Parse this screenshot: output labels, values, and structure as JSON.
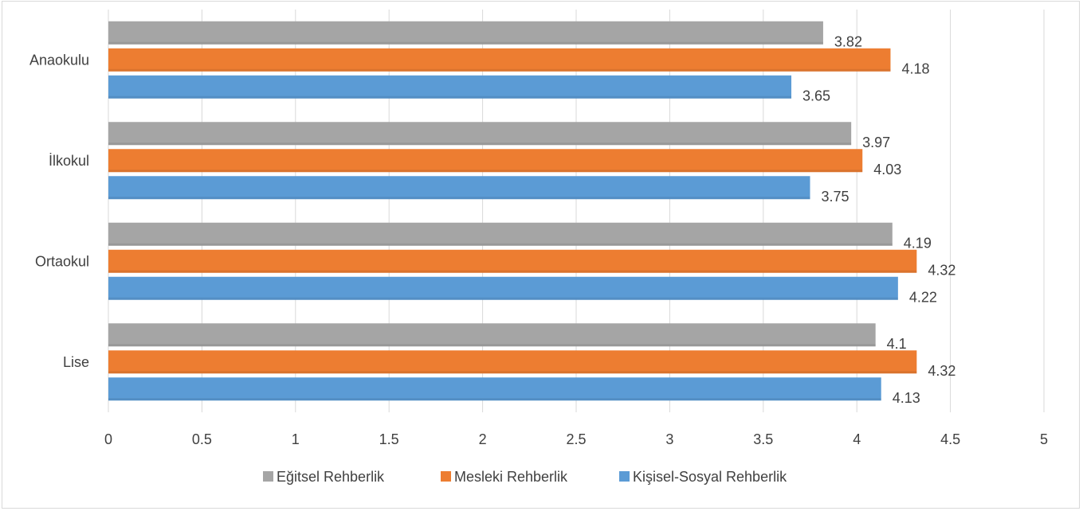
{
  "chart_data": {
    "type": "bar",
    "orientation": "horizontal",
    "categories": [
      "Anaokulu",
      "İlkokul",
      "Ortaokul",
      "Lise"
    ],
    "series": [
      {
        "name": "Eğitsel Rehberlik",
        "color": "#a5a5a5",
        "values": [
          3.82,
          3.97,
          4.19,
          4.1
        ]
      },
      {
        "name": "Mesleki Rehberlik",
        "color": "#ed7d31",
        "values": [
          4.18,
          4.03,
          4.32,
          4.32
        ]
      },
      {
        "name": "Kişisel-Sosyal Rehberlik",
        "color": "#5b9bd5",
        "values": [
          3.65,
          3.75,
          4.22,
          4.13
        ]
      }
    ],
    "xlim": [
      0,
      5
    ],
    "x_ticks": [
      "0",
      "0.5",
      "1",
      "1.5",
      "2",
      "2.5",
      "3",
      "3.5",
      "4",
      "4.5",
      "5"
    ],
    "data_labels": [
      [
        "3.82",
        "4.18",
        "3.65"
      ],
      [
        "3.97",
        "4.03",
        "3.75"
      ],
      [
        "4.19",
        "4.32",
        "4.22"
      ],
      [
        "4.1",
        "4.32",
        "4.13"
      ]
    ],
    "grid": "vertical",
    "legend_position": "bottom"
  }
}
